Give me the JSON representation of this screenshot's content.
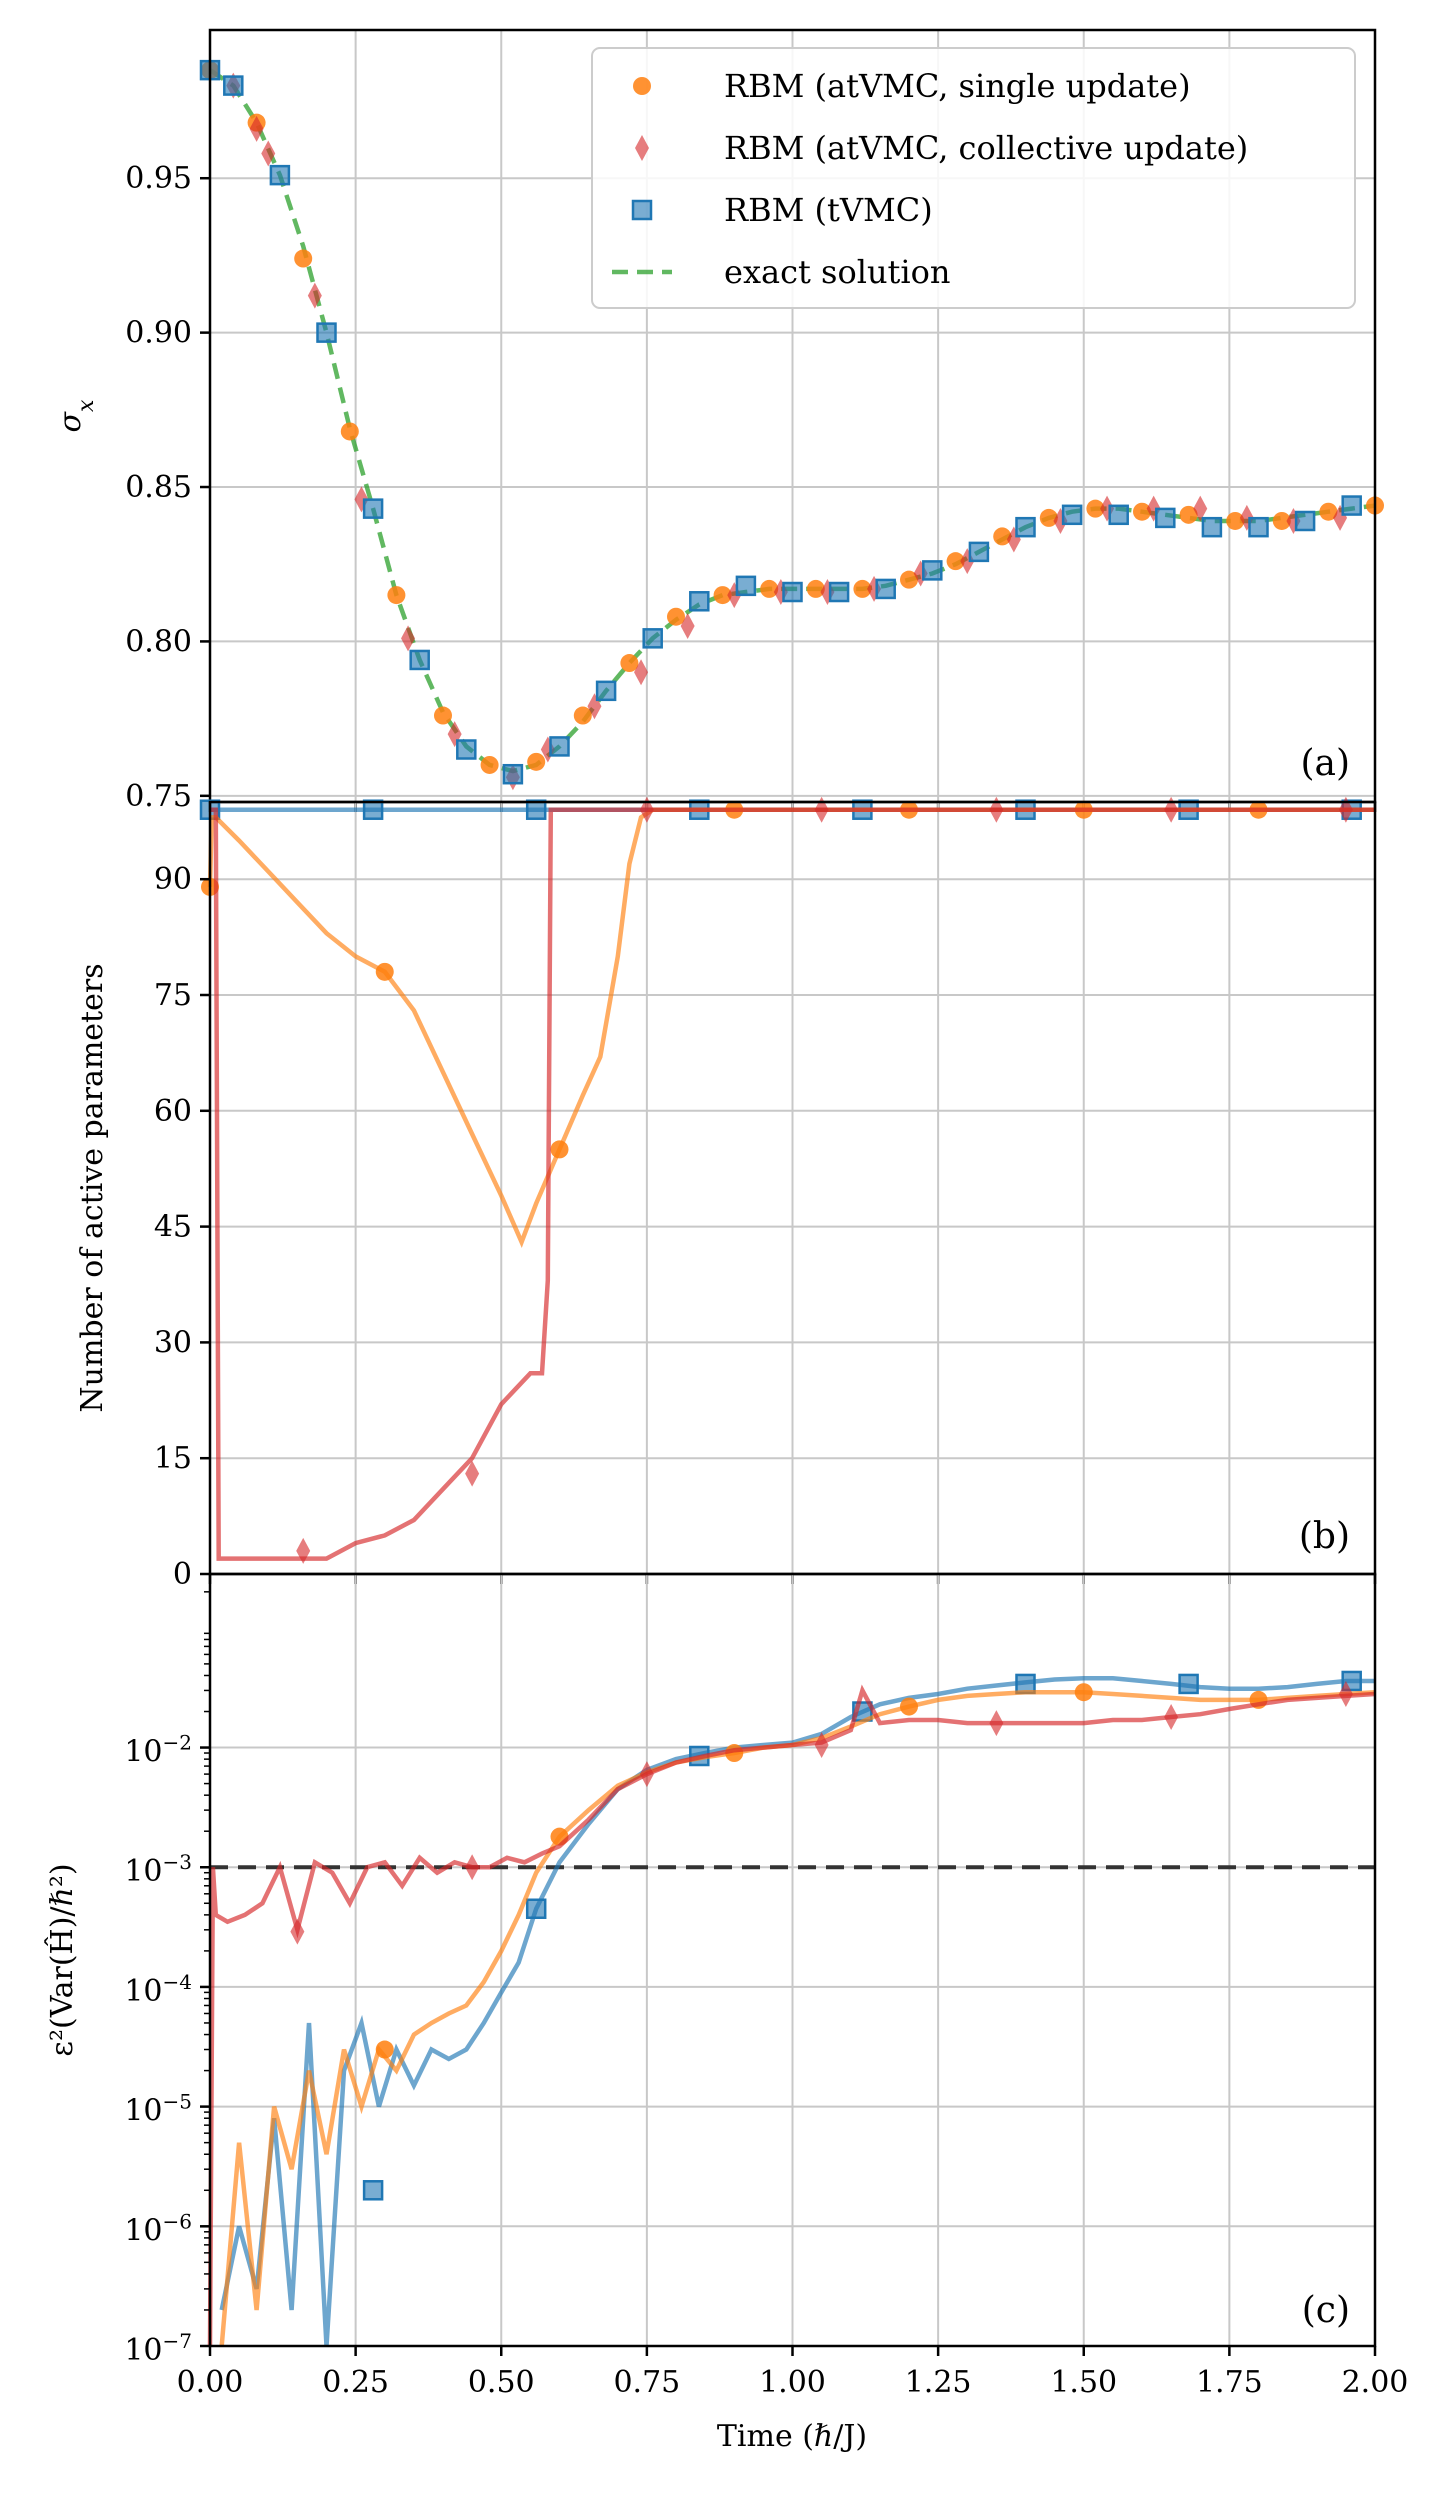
{
  "colors": {
    "single": "#ff7f0e",
    "collective": "#d62728",
    "tvmc": "#1f77b4",
    "exact": "#2ca02c",
    "threshold": "#333333"
  },
  "shared_x": {
    "label": "Time (ℏ/J)",
    "range": [
      0,
      2
    ],
    "ticks": [
      0,
      0.25,
      0.5,
      0.75,
      1.0,
      1.25,
      1.5,
      1.75,
      2.0
    ],
    "tick_labels": [
      "0.00",
      "0.25",
      "0.50",
      "0.75",
      "1.00",
      "1.25",
      "1.50",
      "1.75",
      "2.00"
    ]
  },
  "chart_data": [
    {
      "panel": "(a)",
      "type": "line",
      "ylabel": "σ_x",
      "ylim": [
        0.748,
        0.998
      ],
      "yticks": [
        0.75,
        0.8,
        0.85,
        0.9,
        0.95
      ],
      "ytick_labels": [
        "0.75",
        "0.80",
        "0.85",
        "0.90",
        "0.95"
      ],
      "grid": true,
      "legend": {
        "location": "upper-right",
        "entries": [
          {
            "key": "single",
            "label": "RBM (atVMC, single update)"
          },
          {
            "key": "collective",
            "label": "RBM (atVMC, collective update)"
          },
          {
            "key": "tvmc",
            "label": "RBM (tVMC)"
          },
          {
            "key": "exact",
            "label": "exact solution"
          }
        ]
      },
      "series": [
        {
          "key": "exact",
          "name": "exact solution",
          "style": "dashed-line",
          "x": [
            0,
            0.04,
            0.08,
            0.12,
            0.16,
            0.2,
            0.24,
            0.28,
            0.32,
            0.36,
            0.4,
            0.44,
            0.48,
            0.52,
            0.56,
            0.6,
            0.64,
            0.68,
            0.72,
            0.76,
            0.8,
            0.84,
            0.88,
            0.92,
            0.96,
            1.0,
            1.04,
            1.08,
            1.12,
            1.16,
            1.2,
            1.24,
            1.28,
            1.32,
            1.36,
            1.4,
            1.44,
            1.48,
            1.52,
            1.56,
            1.6,
            1.64,
            1.68,
            1.72,
            1.76,
            1.8,
            1.84,
            1.88,
            1.92,
            1.96,
            2.0
          ],
          "y": [
            0.985,
            0.98,
            0.968,
            0.951,
            0.928,
            0.9,
            0.869,
            0.843,
            0.815,
            0.794,
            0.777,
            0.766,
            0.76,
            0.758,
            0.76,
            0.766,
            0.774,
            0.784,
            0.793,
            0.801,
            0.807,
            0.812,
            0.815,
            0.816,
            0.817,
            0.817,
            0.817,
            0.817,
            0.817,
            0.818,
            0.82,
            0.822,
            0.825,
            0.829,
            0.833,
            0.837,
            0.84,
            0.842,
            0.843,
            0.843,
            0.842,
            0.841,
            0.84,
            0.839,
            0.839,
            0.839,
            0.84,
            0.841,
            0.842,
            0.843,
            0.844
          ]
        },
        {
          "key": "single",
          "name": "RBM (atVMC, single update)",
          "marker": "circle",
          "x": [
            0,
            0.08,
            0.16,
            0.24,
            0.32,
            0.4,
            0.48,
            0.56,
            0.64,
            0.72,
            0.8,
            0.88,
            0.96,
            1.04,
            1.12,
            1.2,
            1.28,
            1.36,
            1.44,
            1.52,
            1.6,
            1.68,
            1.76,
            1.84,
            1.92,
            2.0
          ],
          "y": [
            0.985,
            0.968,
            0.924,
            0.868,
            0.815,
            0.776,
            0.76,
            0.761,
            0.776,
            0.793,
            0.808,
            0.815,
            0.817,
            0.817,
            0.817,
            0.82,
            0.826,
            0.834,
            0.84,
            0.843,
            0.842,
            0.841,
            0.839,
            0.839,
            0.842,
            0.844
          ]
        },
        {
          "key": "collective",
          "name": "RBM (atVMC, collective update)",
          "marker": "diamond",
          "x": [
            0.04,
            0.08,
            0.1,
            0.18,
            0.26,
            0.34,
            0.42,
            0.52,
            0.58,
            0.66,
            0.74,
            0.82,
            0.9,
            0.98,
            1.06,
            1.14,
            1.22,
            1.3,
            1.38,
            1.46,
            1.54,
            1.62,
            1.7,
            1.78,
            1.86,
            1.94
          ],
          "y": [
            0.98,
            0.966,
            0.958,
            0.912,
            0.846,
            0.801,
            0.77,
            0.756,
            0.765,
            0.779,
            0.79,
            0.805,
            0.815,
            0.816,
            0.816,
            0.817,
            0.822,
            0.826,
            0.833,
            0.839,
            0.843,
            0.843,
            0.843,
            0.84,
            0.839,
            0.84
          ]
        },
        {
          "key": "tvmc",
          "name": "RBM (tVMC)",
          "marker": "square",
          "x": [
            0,
            0.04,
            0.12,
            0.2,
            0.28,
            0.36,
            0.44,
            0.52,
            0.6,
            0.68,
            0.76,
            0.84,
            0.92,
            1.0,
            1.08,
            1.16,
            1.24,
            1.32,
            1.4,
            1.48,
            1.56,
            1.64,
            1.72,
            1.8,
            1.88,
            1.96
          ],
          "y": [
            0.985,
            0.98,
            0.951,
            0.9,
            0.843,
            0.794,
            0.765,
            0.757,
            0.766,
            0.784,
            0.801,
            0.813,
            0.818,
            0.816,
            0.816,
            0.817,
            0.823,
            0.829,
            0.837,
            0.841,
            0.841,
            0.84,
            0.837,
            0.837,
            0.839,
            0.844
          ]
        }
      ]
    },
    {
      "panel": "(b)",
      "type": "line",
      "ylabel": "Number of active parameters",
      "ylim": [
        0,
        100
      ],
      "yticks": [
        0,
        15,
        30,
        45,
        60,
        75,
        90
      ],
      "ytick_labels": [
        "0",
        "15",
        "30",
        "45",
        "60",
        "75",
        "90"
      ],
      "grid": true,
      "series": [
        {
          "key": "tvmc",
          "name": "RBM (tVMC)",
          "x": [
            0,
            2.0
          ],
          "y": [
            99,
            99
          ],
          "marker_x": [
            0,
            0.28,
            0.56,
            0.84,
            1.12,
            1.4,
            1.68,
            1.96
          ],
          "marker_y": [
            99,
            99,
            99,
            99,
            99,
            99,
            99,
            99
          ]
        },
        {
          "key": "single",
          "name": "RBM (atVMC, single update)",
          "x": [
            0,
            0.003,
            0.01,
            0.05,
            0.1,
            0.15,
            0.2,
            0.25,
            0.3,
            0.35,
            0.4,
            0.45,
            0.5,
            0.535,
            0.56,
            0.6,
            0.64,
            0.67,
            0.7,
            0.72,
            0.74,
            0.76,
            0.8,
            2.0
          ],
          "y": [
            89,
            98,
            98,
            95,
            91,
            87,
            83,
            80,
            78,
            73,
            65,
            57,
            49,
            43,
            48,
            55,
            62,
            67,
            80,
            92,
            98,
            99,
            99,
            99
          ],
          "marker_x": [
            0,
            0.3,
            0.6,
            0.9,
            1.2,
            1.5,
            1.8
          ],
          "marker_y": [
            89,
            78,
            55,
            99,
            99,
            99,
            99
          ]
        },
        {
          "key": "collective",
          "name": "RBM (atVMC, collective update)",
          "x": [
            0,
            0.01,
            0.015,
            0.02,
            0.1,
            0.2,
            0.25,
            0.3,
            0.35,
            0.4,
            0.45,
            0.5,
            0.55,
            0.57,
            0.58,
            0.585,
            0.6,
            2.0
          ],
          "y": [
            99,
            99,
            2,
            2,
            2,
            2,
            4,
            5,
            7,
            11,
            15,
            22,
            26,
            26,
            38,
            99,
            99,
            99
          ],
          "marker_x": [
            0.16,
            0.45,
            0.75,
            1.05,
            1.35,
            1.65,
            1.95
          ],
          "marker_y": [
            3,
            13,
            99,
            99,
            99,
            99,
            99
          ]
        }
      ]
    },
    {
      "panel": "(c)",
      "type": "line",
      "yscale": "log",
      "ylabel": "ε²(Var(Ĥ)/ℏ²)",
      "ylim_exp": [
        -7,
        -0.55
      ],
      "yticks_exp": [
        -7,
        -6,
        -5,
        -4,
        -3,
        -2
      ],
      "ytick_labels": [
        "10",
        "10",
        "10",
        "10",
        "10",
        "10"
      ],
      "ytick_exponents": [
        "−7",
        "−6",
        "−5",
        "−4",
        "−3",
        "−2"
      ],
      "threshold": {
        "y": 0.001,
        "style": "dashed-line"
      },
      "grid": true,
      "series": [
        {
          "key": "tvmc",
          "name": "RBM (tVMC)",
          "x": [
            0.02,
            0.05,
            0.08,
            0.11,
            0.14,
            0.17,
            0.2,
            0.23,
            0.26,
            0.29,
            0.32,
            0.35,
            0.38,
            0.41,
            0.44,
            0.47,
            0.5,
            0.53,
            0.56,
            0.6,
            0.65,
            0.7,
            0.75,
            0.8,
            0.85,
            0.9,
            0.95,
            1.0,
            1.05,
            1.1,
            1.15,
            1.2,
            1.25,
            1.3,
            1.35,
            1.4,
            1.45,
            1.5,
            1.55,
            1.6,
            1.65,
            1.7,
            1.75,
            1.8,
            1.85,
            1.9,
            1.95,
            2.0
          ],
          "y": [
            2e-07,
            1e-06,
            3e-07,
            8e-06,
            2e-07,
            5e-05,
            1e-07,
            2e-05,
            5e-05,
            1e-05,
            3e-05,
            1.5e-05,
            3e-05,
            2.5e-05,
            3e-05,
            5e-05,
            9e-05,
            0.00016,
            0.00045,
            0.0011,
            0.0023,
            0.0045,
            0.0065,
            0.008,
            0.009,
            0.01,
            0.0105,
            0.011,
            0.013,
            0.018,
            0.023,
            0.026,
            0.028,
            0.031,
            0.033,
            0.035,
            0.037,
            0.038,
            0.038,
            0.036,
            0.034,
            0.032,
            0.031,
            0.031,
            0.032,
            0.034,
            0.036,
            0.036
          ],
          "marker_x": [
            0.28,
            0.56,
            0.84,
            1.12,
            1.4,
            1.68,
            1.96
          ],
          "marker_y": [
            2e-06,
            0.00045,
            0.0085,
            0.02,
            0.034,
            0.034,
            0.036
          ]
        },
        {
          "key": "single",
          "name": "RBM (atVMC, single update)",
          "x": [
            0.02,
            0.05,
            0.08,
            0.11,
            0.14,
            0.17,
            0.2,
            0.23,
            0.26,
            0.29,
            0.32,
            0.35,
            0.38,
            0.41,
            0.44,
            0.47,
            0.5,
            0.53,
            0.56,
            0.6,
            0.65,
            0.7,
            0.75,
            0.8,
            0.85,
            0.9,
            0.95,
            1.0,
            1.05,
            1.1,
            1.15,
            1.2,
            1.25,
            1.3,
            1.35,
            1.4,
            1.45,
            1.5,
            1.55,
            1.6,
            1.65,
            1.7,
            1.75,
            1.8,
            1.85,
            1.9,
            1.95,
            2.0
          ],
          "y": [
            1e-07,
            5e-06,
            2e-07,
            1e-05,
            3e-06,
            2e-05,
            4e-06,
            3e-05,
            1e-05,
            3e-05,
            2e-05,
            4e-05,
            5e-05,
            6e-05,
            7e-05,
            0.00011,
            0.0002,
            0.0004,
            0.0009,
            0.0018,
            0.003,
            0.0048,
            0.0062,
            0.0075,
            0.0083,
            0.009,
            0.01,
            0.0105,
            0.012,
            0.015,
            0.019,
            0.022,
            0.025,
            0.027,
            0.028,
            0.029,
            0.029,
            0.029,
            0.028,
            0.027,
            0.026,
            0.025,
            0.025,
            0.025,
            0.026,
            0.027,
            0.028,
            0.029
          ],
          "marker_x": [
            0.3,
            0.6,
            0.9,
            1.2,
            1.5,
            1.8
          ],
          "marker_y": [
            3e-05,
            0.0018,
            0.009,
            0.022,
            0.029,
            0.025
          ]
        },
        {
          "key": "collective",
          "name": "RBM (atVMC, collective update)",
          "x": [
            0,
            0.005,
            0.01,
            0.03,
            0.06,
            0.09,
            0.12,
            0.15,
            0.18,
            0.21,
            0.24,
            0.27,
            0.3,
            0.33,
            0.36,
            0.39,
            0.42,
            0.45,
            0.48,
            0.51,
            0.54,
            0.57,
            0.6,
            0.65,
            0.7,
            0.75,
            0.8,
            0.85,
            0.9,
            0.95,
            1.0,
            1.05,
            1.1,
            1.12,
            1.15,
            1.2,
            1.25,
            1.3,
            1.35,
            1.4,
            1.45,
            1.5,
            1.55,
            1.6,
            1.65,
            1.7,
            1.75,
            1.8,
            1.85,
            1.9,
            1.95,
            2.0
          ],
          "y": [
            1e-07,
            0.001,
            0.0004,
            0.00035,
            0.0004,
            0.0005,
            0.001,
            0.0003,
            0.0011,
            0.0009,
            0.0005,
            0.001,
            0.0011,
            0.0007,
            0.0012,
            0.0009,
            0.0011,
            0.001,
            0.001,
            0.0012,
            0.0011,
            0.0013,
            0.0015,
            0.0025,
            0.0045,
            0.006,
            0.0075,
            0.0085,
            0.0095,
            0.01,
            0.0105,
            0.011,
            0.014,
            0.03,
            0.016,
            0.017,
            0.017,
            0.016,
            0.016,
            0.016,
            0.016,
            0.016,
            0.017,
            0.017,
            0.018,
            0.019,
            0.021,
            0.023,
            0.025,
            0.026,
            0.027,
            0.028
          ],
          "marker_x": [
            0.15,
            0.45,
            0.75,
            1.05,
            1.35,
            1.65,
            1.95
          ],
          "marker_y": [
            0.00029,
            0.001,
            0.006,
            0.0105,
            0.016,
            0.018,
            0.028
          ]
        }
      ]
    }
  ]
}
